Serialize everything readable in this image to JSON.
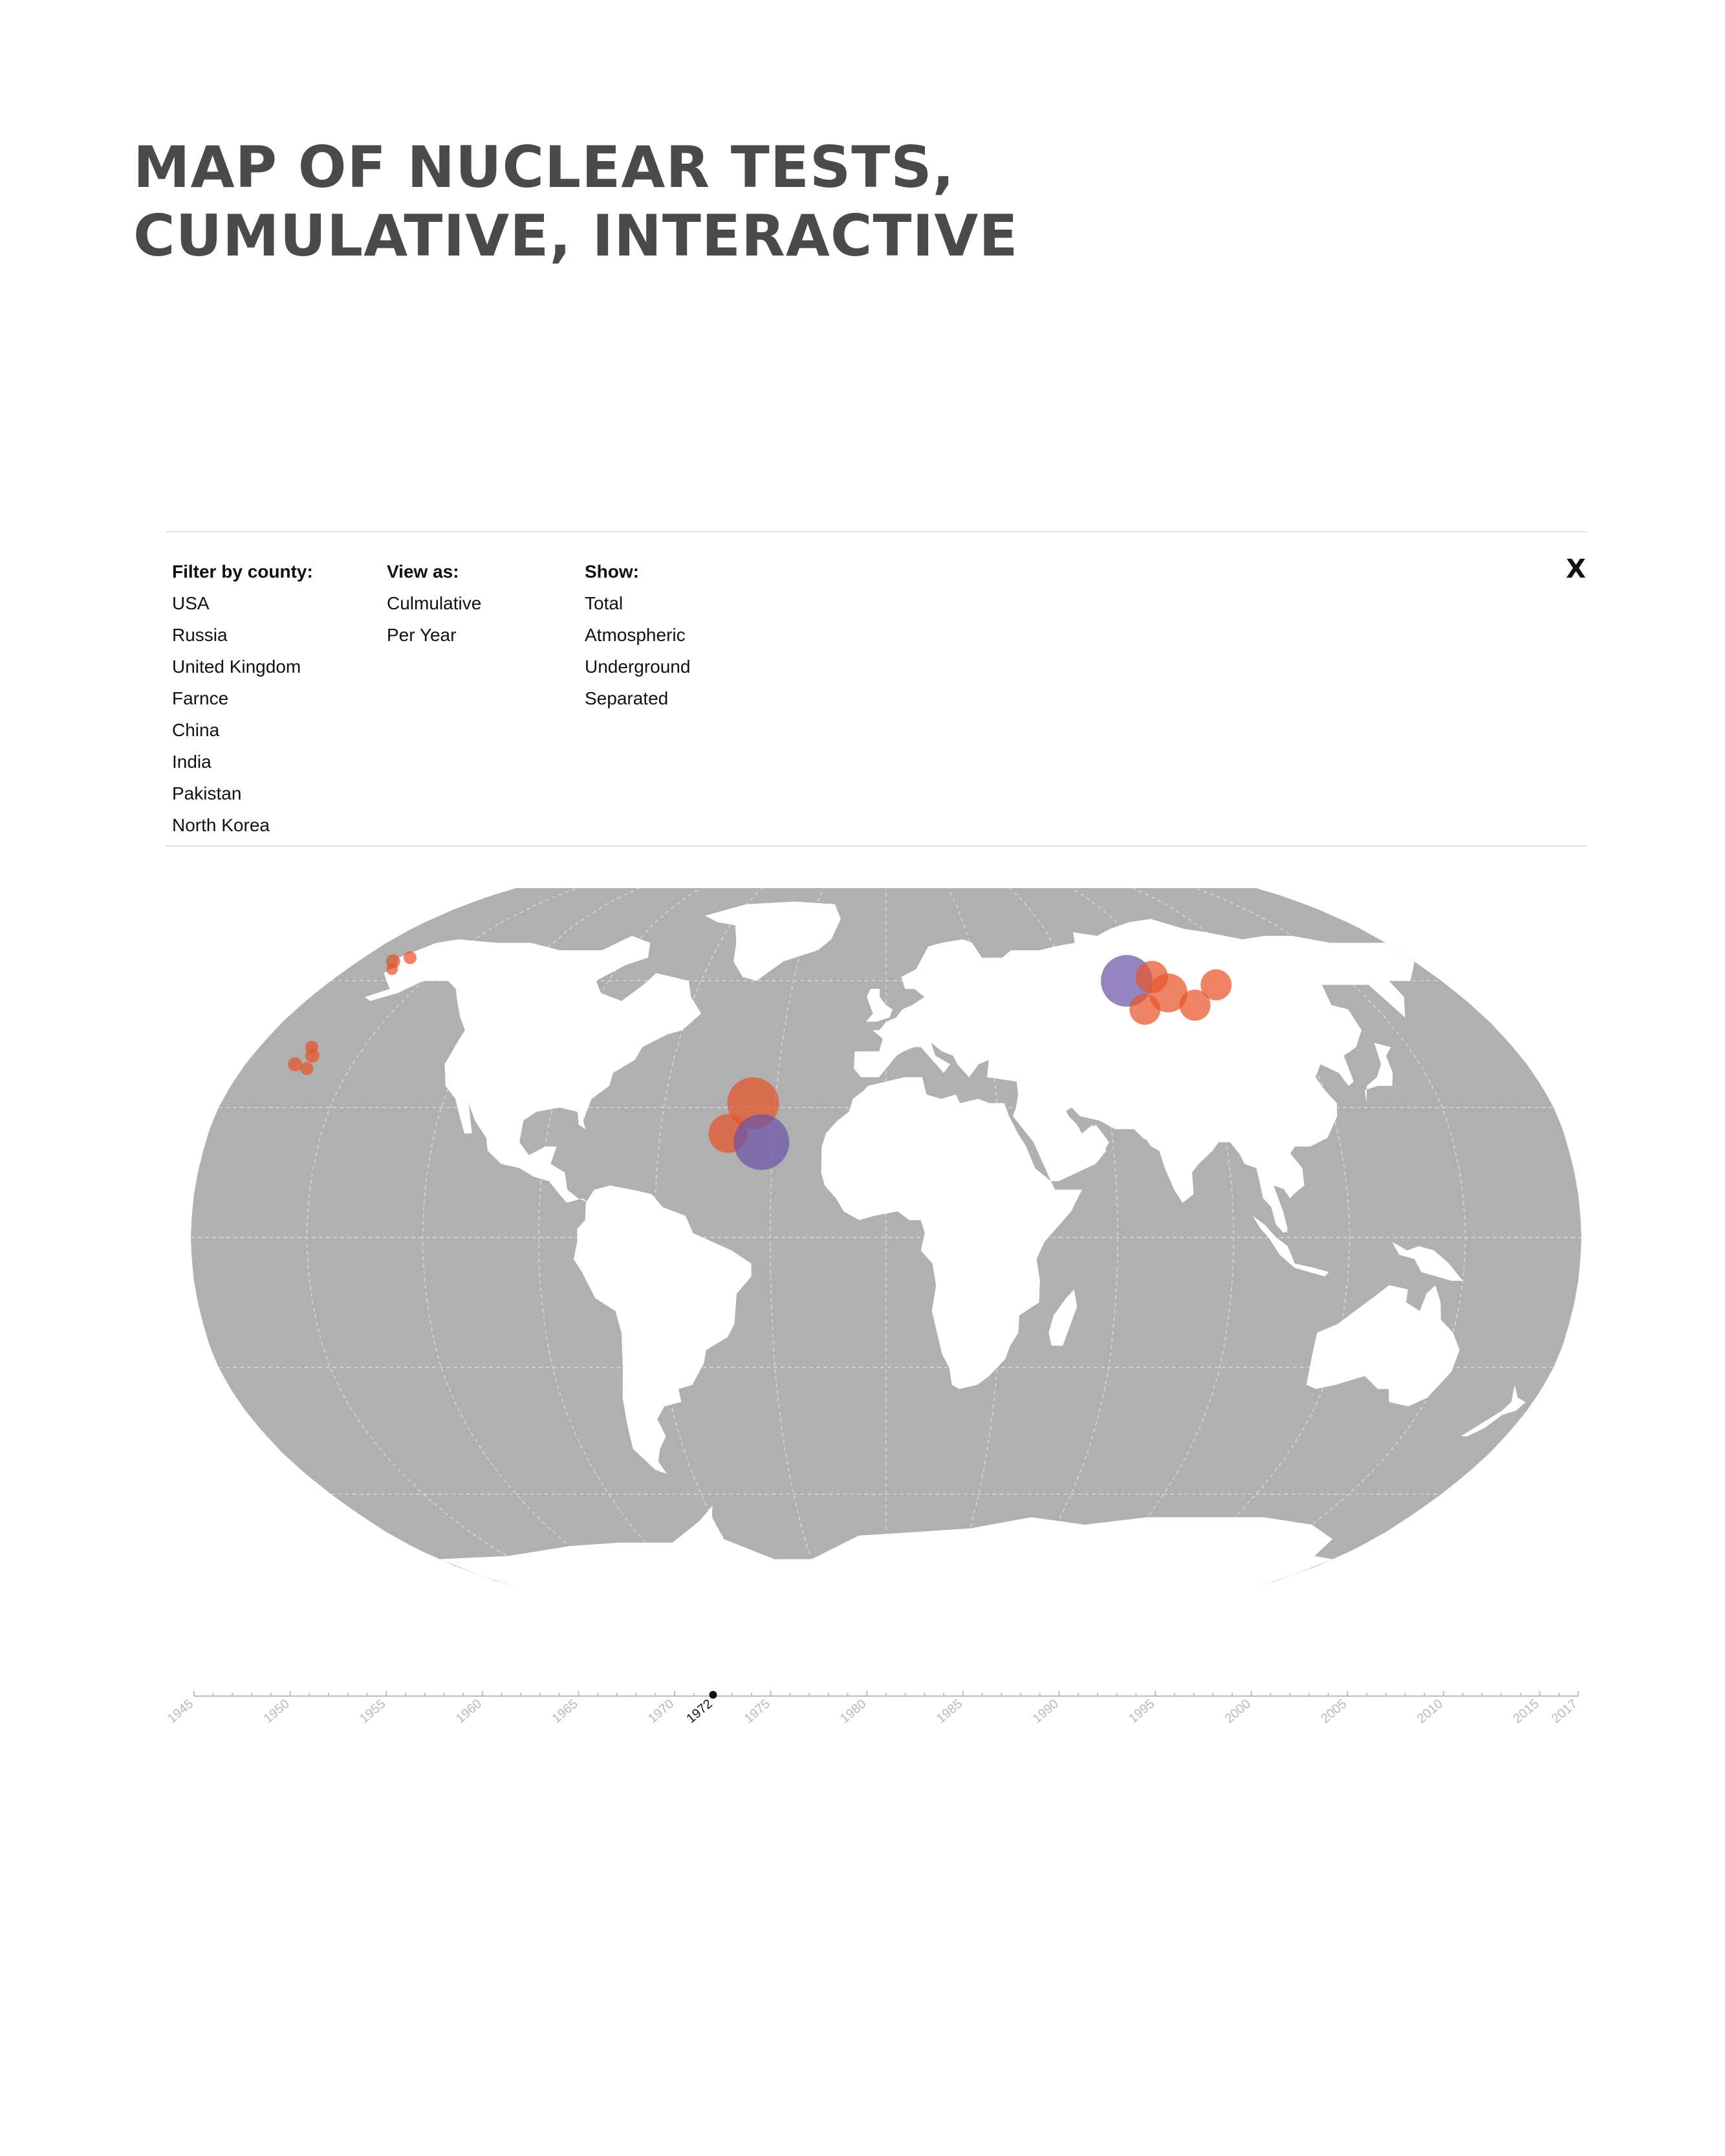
{
  "title": {
    "line1": "MAP OF NUCLEAR TESTS,",
    "line2": "CUMULATIVE, INTERACTIVE"
  },
  "filters": {
    "country": {
      "heading": "Filter by county:",
      "options": [
        "USA",
        "Russia",
        "United Kingdom",
        "Farnce",
        "China",
        "India",
        "Pakistan",
        "North Korea"
      ]
    },
    "view": {
      "heading": "View as:",
      "options": [
        "Culmulative",
        "Per Year"
      ]
    },
    "show": {
      "heading": "Show:",
      "options": [
        "Total",
        "Atmospheric",
        "Underground",
        "Separated"
      ]
    },
    "close_label": "X"
  },
  "map": {
    "projection": "Robinson",
    "ocean_color": "#b0b0b0",
    "land_color": "#ffffff",
    "graticule_color": "#d8d8d8",
    "colors": {
      "orange": "#e8552a",
      "purple": "#6b54a8"
    },
    "markers": [
      {
        "lon": -168,
        "lat": 65,
        "r": 11,
        "color": "orange"
      },
      {
        "lon": -164,
        "lat": 66,
        "r": 10,
        "color": "orange"
      },
      {
        "lon": -165,
        "lat": 63,
        "r": 9,
        "color": "orange"
      },
      {
        "lon": -165,
        "lat": 44,
        "r": 10,
        "color": "orange"
      },
      {
        "lon": -163,
        "lat": 42,
        "r": 11,
        "color": "orange"
      },
      {
        "lon": -166,
        "lat": 40,
        "r": 11,
        "color": "orange"
      },
      {
        "lon": -162,
        "lat": 39,
        "r": 10,
        "color": "orange"
      },
      {
        "lon": -36,
        "lat": 31,
        "r": 40,
        "color": "orange"
      },
      {
        "lon": -42,
        "lat": 24,
        "r": 30,
        "color": "orange"
      },
      {
        "lon": -33,
        "lat": 22,
        "r": 43,
        "color": "purple"
      },
      {
        "lon": 78,
        "lat": 60,
        "r": 40,
        "color": "purple"
      },
      {
        "lon": 87,
        "lat": 61,
        "r": 25,
        "color": "orange"
      },
      {
        "lon": 89,
        "lat": 57,
        "r": 30,
        "color": "orange"
      },
      {
        "lon": 79,
        "lat": 53,
        "r": 24,
        "color": "orange"
      },
      {
        "lon": 95,
        "lat": 54,
        "r": 24,
        "color": "orange"
      },
      {
        "lon": 106,
        "lat": 59,
        "r": 24,
        "color": "orange"
      }
    ]
  },
  "timeline": {
    "labels": [
      "1945",
      "1950",
      "1955",
      "1960",
      "1965",
      "1970",
      "1975",
      "1980",
      "1985",
      "1990",
      "1995",
      "2000",
      "2005",
      "2010",
      "2015",
      "2017"
    ],
    "start_year": 1945,
    "end_year": 2017,
    "selected": "1972"
  }
}
